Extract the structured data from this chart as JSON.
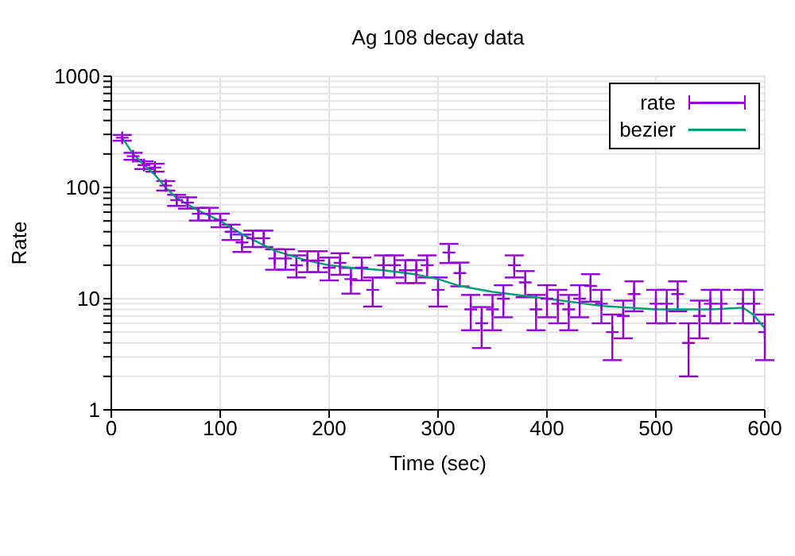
{
  "chart_data": {
    "type": "scatter",
    "title": "Ag 108 decay data",
    "xlabel": "Time (sec)",
    "ylabel": "Rate",
    "x": [
      10,
      20,
      30,
      40,
      50,
      60,
      70,
      80,
      90,
      100,
      110,
      120,
      130,
      140,
      150,
      160,
      170,
      180,
      190,
      200,
      210,
      220,
      230,
      240,
      250,
      260,
      270,
      280,
      290,
      300,
      310,
      320,
      330,
      340,
      350,
      360,
      370,
      380,
      390,
      400,
      410,
      420,
      430,
      440,
      450,
      460,
      470,
      480,
      490,
      500,
      510,
      520,
      530,
      540,
      550,
      560,
      570,
      580,
      590,
      600
    ],
    "series": [
      {
        "name": "rate",
        "color": "#9400d3",
        "values": [
          280,
          191,
          159,
          151,
          104,
          77,
          73,
          58,
          58,
          51,
          40,
          32,
          35,
          35,
          23,
          23,
          20,
          22,
          22,
          19,
          21,
          15,
          19,
          12,
          20,
          20,
          18,
          18,
          20,
          12,
          26,
          17,
          8,
          6,
          8,
          10,
          20,
          14,
          8,
          10,
          9,
          8,
          10,
          13,
          9,
          5,
          7,
          11,
          null,
          9,
          9,
          11,
          4,
          7,
          9,
          9,
          null,
          9,
          9,
          5
        ],
        "errors": [
          16.7,
          13.8,
          12.6,
          12.3,
          10.2,
          8.8,
          8.5,
          7.6,
          7.6,
          7.1,
          6.3,
          5.7,
          5.9,
          5.9,
          4.8,
          4.8,
          4.5,
          4.7,
          4.7,
          4.4,
          4.6,
          3.9,
          4.4,
          3.5,
          4.5,
          4.5,
          4.2,
          4.2,
          4.5,
          3.5,
          5.1,
          4.1,
          2.8,
          2.4,
          2.8,
          3.2,
          4.5,
          3.7,
          2.8,
          3.2,
          3,
          2.8,
          3.2,
          3.6,
          3,
          2.2,
          2.6,
          3.3,
          null,
          3,
          3,
          3.3,
          2,
          2.6,
          3,
          3,
          null,
          3,
          3,
          2.2
        ]
      },
      {
        "name": "bezier",
        "type": "line",
        "marker": "none",
        "color": "#009e73",
        "x": [
          10,
          20,
          30,
          40,
          50,
          60,
          80,
          100,
          120,
          150,
          180,
          200,
          220,
          250,
          270,
          280,
          300,
          320,
          350,
          400,
          450,
          500,
          550,
          580,
          590,
          600
        ],
        "values": [
          280,
          200,
          160,
          130,
          100,
          80,
          62,
          50,
          38,
          27,
          22,
          20,
          19,
          18,
          17,
          16.5,
          15,
          13,
          11.5,
          10,
          8.6,
          8,
          8,
          8.3,
          7.1,
          5.4
        ]
      }
    ],
    "xlim": [
      0,
      600
    ],
    "xticks": [
      0,
      100,
      200,
      300,
      400,
      500,
      600
    ],
    "ylim": [
      1,
      1000
    ],
    "log": "y",
    "yticks": [
      1,
      {
        "value": 2,
        "label": null
      },
      {
        "value": 3,
        "label": null
      },
      {
        "value": 4,
        "label": null
      },
      {
        "value": 5,
        "label": null
      },
      {
        "value": 6,
        "label": null
      },
      {
        "value": 7,
        "label": null
      },
      {
        "value": 8,
        "label": null
      },
      {
        "value": 9,
        "label": null
      },
      10,
      {
        "value": 20,
        "label": null
      },
      {
        "value": 30,
        "label": null
      },
      {
        "value": 40,
        "label": null
      },
      {
        "value": 50,
        "label": null
      },
      {
        "value": 60,
        "label": null
      },
      {
        "value": 70,
        "label": null
      },
      {
        "value": 80,
        "label": null
      },
      {
        "value": 90,
        "label": null
      },
      100,
      {
        "value": 200,
        "label": null
      },
      {
        "value": 300,
        "label": null
      },
      {
        "value": 400,
        "label": null
      },
      {
        "value": 500,
        "label": null
      },
      {
        "value": 600,
        "label": null
      },
      {
        "value": 700,
        "label": null
      },
      {
        "value": 800,
        "label": null
      },
      {
        "value": 900,
        "label": null
      },
      1000
    ],
    "grid": true,
    "legend": "top right",
    "marker": "cross"
  }
}
